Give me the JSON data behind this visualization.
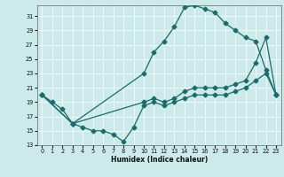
{
  "xlabel": "Humidex (Indice chaleur)",
  "bg_color": "#cceaea",
  "grid_color": "#b0d8d8",
  "line_color": "#1c6b6b",
  "xlim": [
    -0.5,
    23.5
  ],
  "ylim": [
    13,
    32.5
  ],
  "yticks": [
    13,
    15,
    17,
    19,
    21,
    23,
    25,
    27,
    29,
    31
  ],
  "xticks": [
    0,
    1,
    2,
    3,
    4,
    5,
    6,
    7,
    8,
    9,
    10,
    11,
    12,
    13,
    14,
    15,
    16,
    17,
    18,
    19,
    20,
    21,
    22,
    23
  ],
  "series1_x": [
    0,
    1,
    2,
    3,
    4,
    5,
    6,
    7,
    8,
    9,
    10,
    11,
    12,
    13,
    14,
    15,
    16,
    17,
    18,
    19,
    20,
    21,
    22,
    23
  ],
  "series1_y": [
    20,
    19,
    18,
    16,
    15.5,
    15,
    15,
    14.5,
    13.5,
    15.5,
    18.5,
    19,
    18.5,
    19,
    19.5,
    20,
    20,
    20,
    20,
    20.5,
    21,
    22,
    23,
    20
  ],
  "series2_x": [
    0,
    3,
    10,
    11,
    12,
    13,
    14,
    15,
    16,
    17,
    18,
    19,
    20,
    21,
    22,
    23
  ],
  "series2_y": [
    20,
    16,
    23,
    26,
    27.5,
    29.5,
    32.2,
    32.5,
    32,
    31.5,
    30,
    29,
    28,
    27.5,
    23.5,
    20
  ],
  "series3_x": [
    0,
    3,
    10,
    11,
    12,
    13,
    14,
    15,
    16,
    17,
    18,
    19,
    20,
    21,
    22,
    23
  ],
  "series3_y": [
    20,
    16,
    19,
    19.5,
    19,
    19.5,
    20.5,
    21,
    21,
    21,
    21,
    21.5,
    22,
    24.5,
    28,
    20
  ]
}
